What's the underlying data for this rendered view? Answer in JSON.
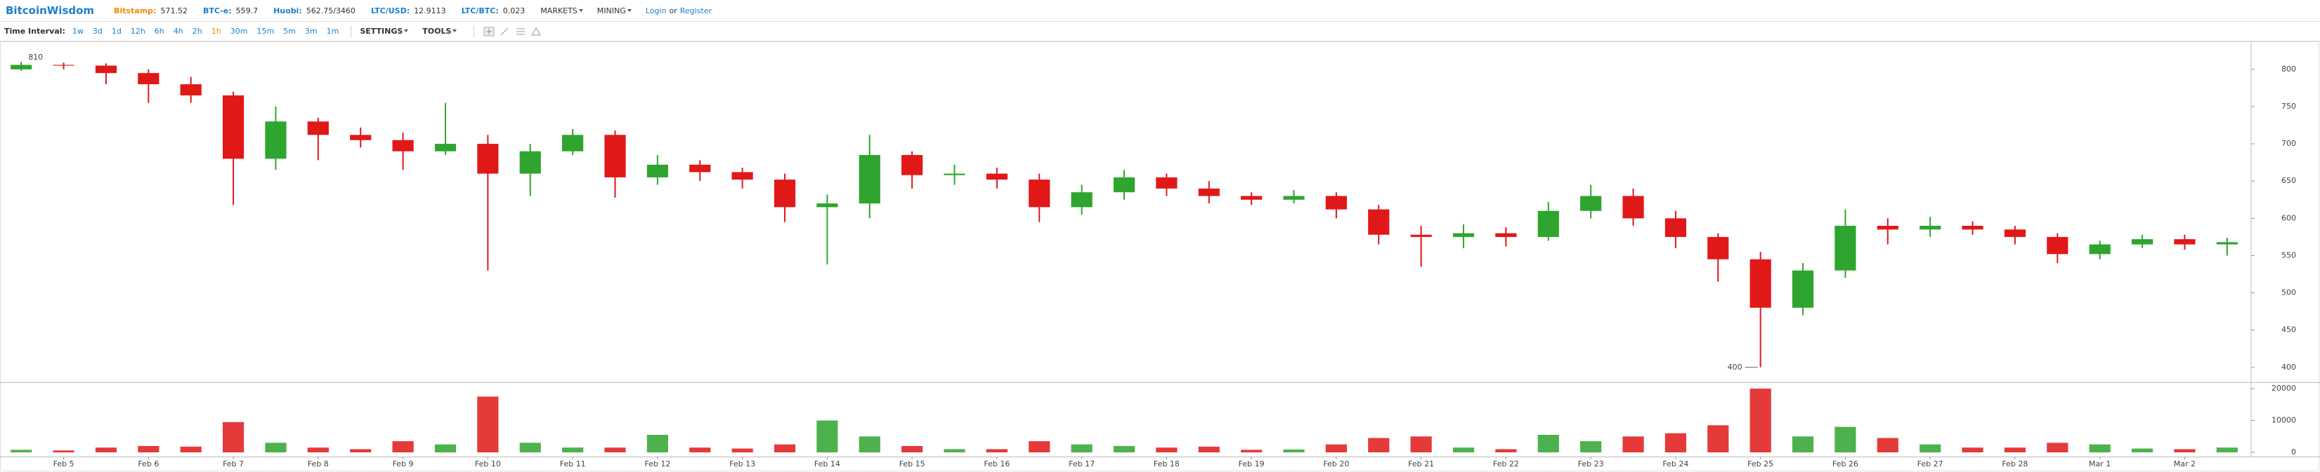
{
  "header": {
    "brand": "BitcoinWisdom",
    "quotes": [
      {
        "name": "Bitstamp:",
        "value": 571.52,
        "color": "#f08a00"
      },
      {
        "name": "BTC-e:",
        "value": 559.7,
        "color": "#1b7fcc"
      },
      {
        "name": "Huobi:",
        "value": "562.75/3460",
        "color": "#1b7fcc"
      },
      {
        "name": "LTC/USD:",
        "value": 12.9113,
        "color": "#1b7fcc"
      },
      {
        "name": "LTC/BTC:",
        "value": 0.023,
        "color": "#1b7fcc"
      }
    ],
    "menus": [
      "MARKETS",
      "MINING"
    ],
    "login": "Login",
    "or": "or",
    "register": "Register"
  },
  "toolbar": {
    "label": "Time Interval:",
    "intervals": [
      {
        "label": "1w"
      },
      {
        "label": "3d"
      },
      {
        "label": "1d"
      },
      {
        "label": "12h"
      },
      {
        "label": "6h"
      },
      {
        "label": "4h"
      },
      {
        "label": "2h"
      },
      {
        "label": "1h",
        "active": true
      },
      {
        "label": "30m"
      },
      {
        "label": "15m"
      },
      {
        "label": "5m"
      },
      {
        "label": "3m"
      },
      {
        "label": "1m"
      }
    ],
    "menus": [
      "SETTINGS",
      "TOOLS"
    ]
  },
  "chart_data": {
    "type": "candlestick",
    "categories": [
      null,
      "Feb 5",
      null,
      "Feb 6",
      null,
      "Feb 7",
      null,
      "Feb 8",
      null,
      "Feb 9",
      null,
      "Feb 10",
      null,
      "Feb 11",
      null,
      "Feb 12",
      null,
      "Feb 13",
      null,
      "Feb 14",
      null,
      "Feb 15",
      null,
      "Feb 16",
      null,
      "Feb 17",
      null,
      "Feb 18",
      null,
      "Feb 19",
      null,
      "Feb 20",
      null,
      "Feb 21",
      null,
      "Feb 22",
      null,
      "Feb 23",
      null,
      "Feb 24",
      null,
      "Feb 25",
      null,
      "Feb 26",
      null,
      "Feb 27",
      null,
      "Feb 28",
      null,
      "Mar 1",
      null,
      "Mar 2",
      null
    ],
    "open": [
      800,
      806,
      805,
      795,
      780,
      765,
      680,
      730,
      712,
      705,
      690,
      700,
      660,
      690,
      712,
      655,
      672,
      662,
      652,
      615,
      620,
      685,
      658,
      660,
      652,
      615,
      635,
      655,
      640,
      630,
      625,
      630,
      612,
      578,
      575,
      580,
      575,
      610,
      630,
      600,
      575,
      545,
      480,
      530,
      590,
      585,
      590,
      585,
      575,
      552,
      565,
      572,
      565
    ],
    "high": [
      810,
      809,
      808,
      800,
      790,
      770,
      750,
      735,
      722,
      715,
      755,
      712,
      700,
      720,
      718,
      685,
      678,
      668,
      660,
      632,
      712,
      690,
      672,
      668,
      660,
      645,
      665,
      660,
      650,
      635,
      638,
      635,
      618,
      590,
      592,
      588,
      622,
      645,
      640,
      610,
      580,
      555,
      540,
      612,
      600,
      602,
      596,
      590,
      580,
      570,
      578,
      578,
      574
    ],
    "low": [
      798,
      800,
      780,
      755,
      755,
      618,
      665,
      678,
      695,
      665,
      685,
      530,
      630,
      685,
      628,
      645,
      650,
      640,
      595,
      538,
      600,
      640,
      645,
      640,
      595,
      605,
      625,
      630,
      620,
      618,
      620,
      600,
      565,
      535,
      560,
      562,
      570,
      600,
      590,
      560,
      515,
      400,
      470,
      520,
      565,
      575,
      578,
      565,
      540,
      545,
      560,
      558,
      550
    ],
    "close": [
      806,
      805,
      795,
      780,
      765,
      680,
      730,
      712,
      705,
      690,
      700,
      660,
      690,
      712,
      655,
      672,
      662,
      652,
      615,
      620,
      685,
      658,
      660,
      652,
      615,
      635,
      655,
      640,
      630,
      625,
      630,
      612,
      578,
      575,
      580,
      575,
      610,
      630,
      600,
      575,
      545,
      480,
      530,
      590,
      585,
      590,
      585,
      575,
      552,
      565,
      572,
      565,
      568
    ],
    "volume": [
      800,
      600,
      1500,
      2000,
      1800,
      9500,
      3000,
      1500,
      1000,
      3500,
      2500,
      17500,
      3000,
      1500,
      1500,
      5500,
      1500,
      1200,
      2500,
      10000,
      5000,
      2000,
      1000,
      1000,
      3500,
      2500,
      2000,
      1500,
      1800,
      800,
      900,
      2500,
      4500,
      5000,
      1500,
      1000,
      5500,
      3500,
      5000,
      6000,
      8500,
      20000,
      5000,
      8000,
      4500,
      2500,
      1500,
      1500,
      3000,
      2500,
      1200,
      1000,
      1500
    ],
    "up_color": "#2ea52e",
    "down_color": "#e01818",
    "ylim": [
      380,
      830
    ],
    "yticks": [
      400,
      450,
      500,
      550,
      600,
      650,
      700,
      750,
      800
    ],
    "volume_ylim": [
      0,
      22000
    ],
    "volume_yticks": [
      0,
      10000,
      20000
    ],
    "max_marker": 810,
    "min_marker": 400
  }
}
